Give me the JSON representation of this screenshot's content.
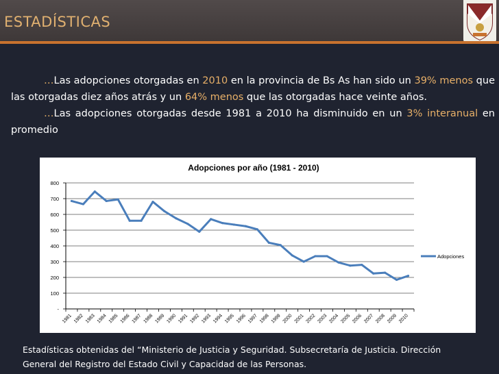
{
  "header": {
    "title": "ESTADÍSTICAS",
    "accent_color": "#c8722e",
    "title_color": "#e0b070"
  },
  "crest": {
    "name": "school-crest"
  },
  "intro": {
    "p1": {
      "ellipsis": "…",
      "t1": "Las adopciones otorgadas en ",
      "year": "2010",
      "t2": " en la provincia de Bs As han sido un ",
      "pct1": "39% menos",
      "t3": " que las otorgadas diez años atrás y un ",
      "pct2": "64% menos",
      "t4": " que las otorgadas hace veinte años."
    },
    "p2": {
      "ellipsis": "…",
      "t1": "Las adopciones otorgadas desde 1981 a 2010 ha disminuido en un ",
      "pct": "3% interanual",
      "t2": " en promedio"
    }
  },
  "chart_data": {
    "type": "line",
    "title": "Adopciones por año (1981 - 2010)",
    "xlabel": "",
    "ylabel": "",
    "ylim": [
      0,
      800
    ],
    "yticks": [
      0,
      100,
      200,
      300,
      400,
      500,
      600,
      700,
      800
    ],
    "ytick_labels": [
      "-",
      "100",
      "200",
      "300",
      "400",
      "500",
      "600",
      "700",
      "800"
    ],
    "grid": true,
    "legend": "right",
    "categories": [
      "1981",
      "1982",
      "1983",
      "1984",
      "1985",
      "1986",
      "1987",
      "1988",
      "1989",
      "1990",
      "1991",
      "1992",
      "1993",
      "1994",
      "1995",
      "1996",
      "1997",
      "1998",
      "1999",
      "2000",
      "2001",
      "2002",
      "2003",
      "2004",
      "2005",
      "2006",
      "2007",
      "2008",
      "2009",
      "2010"
    ],
    "series": [
      {
        "name": "Adopciones",
        "color": "#4a7ebb",
        "values": [
          685,
          665,
          745,
          685,
          695,
          560,
          560,
          680,
          620,
          575,
          540,
          490,
          570,
          545,
          535,
          525,
          505,
          420,
          405,
          340,
          300,
          335,
          335,
          295,
          275,
          280,
          225,
          230,
          185,
          210
        ]
      }
    ]
  },
  "footnote": {
    "line1": "Estadísticas obtenidas del “Ministerio de Justicia y Seguridad. Subsecretaría de Justicia. Dirección",
    "line2": "General del Registro del Estado Civil y Capacidad de las Personas."
  }
}
